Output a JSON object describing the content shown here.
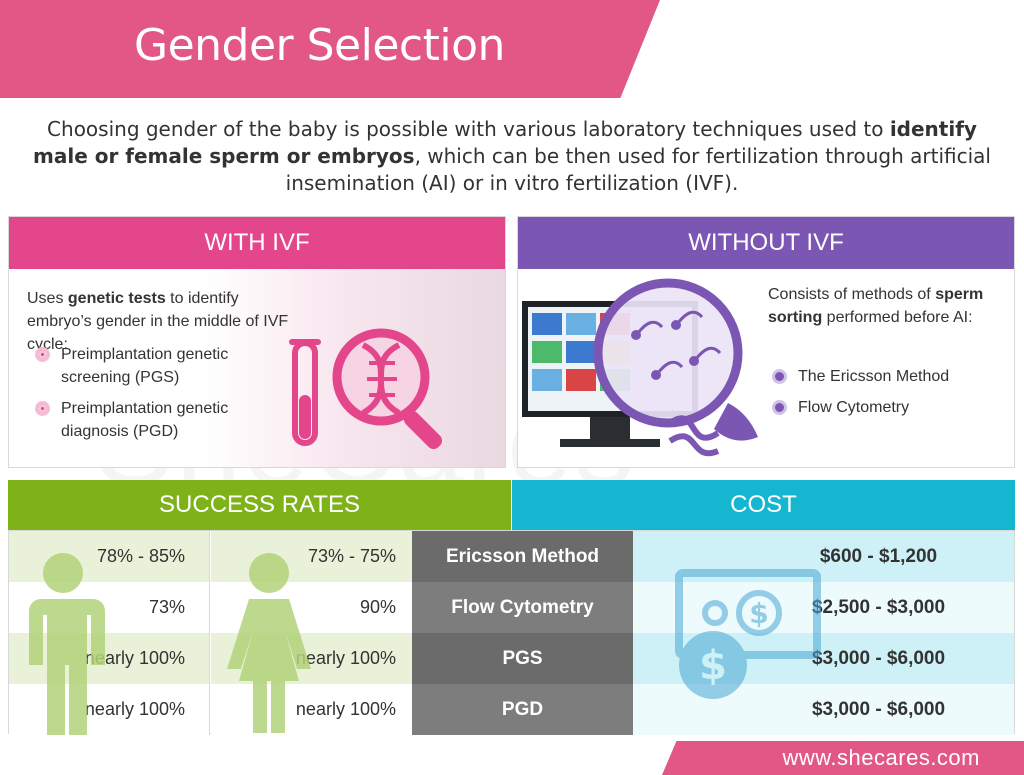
{
  "header": {
    "title": "Gender Selection"
  },
  "intro": {
    "part1": "Choosing gender of the baby is possible with various laboratory techniques used to ",
    "bold": "identify male or female sperm or embryos",
    "part2": ", which can be then used for fertilization through artificial insemination (AI) or in vitro fertilization (IVF)."
  },
  "with_ivf": {
    "title": "WITH IVF",
    "desc_pre": "Uses ",
    "desc_bold": "genetic tests",
    "desc_post": " to identify embryo’s gender in the middle of IVF cycle:",
    "items": [
      "Preimplantation genetic screening (PGS)",
      "Preimplantation genetic diagnosis (PGD)"
    ]
  },
  "without_ivf": {
    "title": "WITHOUT IVF",
    "desc_pre": "Consists of methods of ",
    "desc_bold": "sperm sorting",
    "desc_post": " performed before AI:",
    "items": [
      "The Ericsson Method",
      "Flow Cytometry"
    ]
  },
  "success_rates": {
    "title": "SUCCESS RATES"
  },
  "cost": {
    "title": "COST"
  },
  "rows": [
    {
      "male": "78% - 85%",
      "female": "73% - 75%",
      "method": "Ericsson Method",
      "cost": "$600 - $1,200"
    },
    {
      "male": "73%",
      "female": "90%",
      "method": "Flow Cytometry",
      "cost": "$2,500 - $3,000"
    },
    {
      "male": "nearly 100%",
      "female": "nearly 100%",
      "method": "PGS",
      "cost": "$3,000 - $6,000"
    },
    {
      "male": "nearly 100%",
      "female": "nearly 100%",
      "method": "PGD",
      "cost": "$3,000 - $6,000"
    }
  ],
  "footer": {
    "url": "www.shecares.com"
  },
  "watermark": "SheCares",
  "colors": {
    "pink": "#e25785",
    "ivf_pink": "#e4468b",
    "purple": "#7b57b3",
    "green": "#7eb219",
    "cyan": "#15b6d0"
  },
  "icons": [
    "test-tube-icon",
    "dna-magnifier-icon",
    "monitor-icon",
    "sperm-magnifier-icon",
    "male-person-icon",
    "female-person-icon",
    "money-icon"
  ]
}
